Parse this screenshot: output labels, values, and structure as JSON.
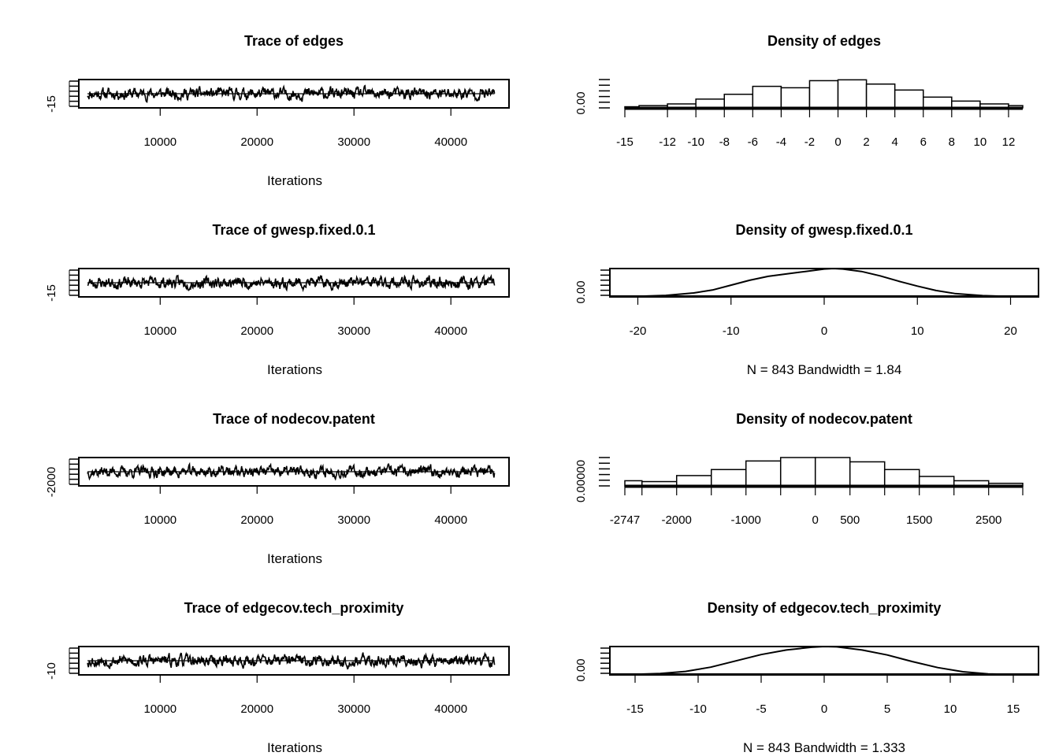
{
  "chart_data": [
    {
      "type": "line",
      "title": "Trace of edges",
      "xlabel": "Iterations",
      "ylabel": "",
      "xticks": [
        10000,
        20000,
        30000,
        40000
      ],
      "yticks": [
        -15
      ],
      "ytick_labels": [
        "-15"
      ],
      "xlim": [
        1600,
        46000
      ],
      "ylim": [
        -18,
        18
      ],
      "series": [
        {
          "seed": 11,
          "x_start": 2500,
          "x_end": 44500,
          "n": 843,
          "mean": 0,
          "sd": 6
        }
      ]
    },
    {
      "type": "bar",
      "title": "Density of edges",
      "xlabel": "",
      "ylabel": "",
      "xticks": [
        -15,
        -12,
        -10,
        -8,
        -6,
        -4,
        -2,
        0,
        2,
        4,
        6,
        8,
        10,
        12
      ],
      "xtick_labels": [
        "-15",
        "-12",
        "-10",
        "-8",
        "-6",
        "-4",
        "-2",
        "0",
        "2",
        "4",
        "6",
        "8",
        "10",
        "12"
      ],
      "ytick_labels": [
        "0.00"
      ],
      "bins": [
        [
          -15,
          -14
        ],
        [
          -14,
          -12
        ],
        [
          -12,
          -10
        ],
        [
          -10,
          -8
        ],
        [
          -8,
          -6
        ],
        [
          -6,
          -4
        ],
        [
          -4,
          -2
        ],
        [
          -2,
          0
        ],
        [
          0,
          2
        ],
        [
          2,
          4
        ],
        [
          4,
          6
        ],
        [
          6,
          8
        ],
        [
          8,
          10
        ],
        [
          10,
          12
        ],
        [
          12,
          13
        ]
      ],
      "values": [
        0.004,
        0.008,
        0.014,
        0.031,
        0.048,
        0.076,
        0.071,
        0.096,
        0.099,
        0.084,
        0.063,
        0.038,
        0.024,
        0.014,
        0.008
      ],
      "xlim": [
        -15,
        13
      ],
      "ylim": [
        0,
        0.1
      ]
    },
    {
      "type": "line",
      "title": "Trace of gwesp.fixed.0.1",
      "xlabel": "Iterations",
      "ylabel": "",
      "xticks": [
        10000,
        20000,
        30000,
        40000
      ],
      "yticks": [
        -15
      ],
      "ytick_labels": [
        "-15"
      ],
      "xlim": [
        1600,
        46000
      ],
      "ylim": [
        -18,
        18
      ],
      "series": [
        {
          "seed": 23,
          "x_start": 2500,
          "x_end": 44500,
          "n": 843,
          "mean": 0,
          "sd": 6
        }
      ]
    },
    {
      "type": "area",
      "title": "Density of gwesp.fixed.0.1",
      "xlabel": "N = 843   Bandwidth = 1.84",
      "ylabel": "",
      "xticks": [
        -20,
        -10,
        0,
        10,
        20
      ],
      "ytick_labels": [
        "0.00"
      ],
      "x": [
        -23,
        -20,
        -17,
        -14,
        -12,
        -10,
        -8,
        -6,
        -4,
        -2,
        0,
        1,
        2,
        4,
        6,
        8,
        10,
        12,
        14,
        17,
        20,
        23
      ],
      "y": [
        0.0005,
        0.0012,
        0.003,
        0.008,
        0.014,
        0.024,
        0.034,
        0.042,
        0.047,
        0.052,
        0.057,
        0.058,
        0.057,
        0.052,
        0.043,
        0.032,
        0.022,
        0.013,
        0.007,
        0.0025,
        0.0008,
        0.0002
      ],
      "xlim": [
        -23,
        23
      ],
      "ylim": [
        0,
        0.058
      ]
    },
    {
      "type": "line",
      "title": "Trace of nodecov.patent",
      "xlabel": "Iterations",
      "ylabel": "",
      "xticks": [
        10000,
        20000,
        30000,
        40000
      ],
      "yticks": [
        -2000
      ],
      "ytick_labels": [
        "-2000"
      ],
      "xlim": [
        1600,
        46000
      ],
      "ylim": [
        -2800,
        2800
      ],
      "series": [
        {
          "seed": 37,
          "x_start": 2500,
          "x_end": 44500,
          "n": 843,
          "mean": 0,
          "sd": 900
        }
      ]
    },
    {
      "type": "bar",
      "title": "Density of nodecov.patent",
      "xlabel": "",
      "ylabel": "",
      "xticks": [
        -2747,
        -2500,
        -2000,
        -1500,
        -1000,
        -500,
        0,
        500,
        1000,
        1500,
        2000,
        2500,
        2992
      ],
      "xtick_labels": [
        "-2747",
        "",
        "-2000",
        "",
        "-1000",
        "",
        "0",
        "500",
        "",
        "1500",
        "",
        "2500",
        ""
      ],
      "ytick_labels": [
        "0.00000"
      ],
      "bins": [
        [
          -2747,
          -2500
        ],
        [
          -2500,
          -2000
        ],
        [
          -2000,
          -1500
        ],
        [
          -1500,
          -1000
        ],
        [
          -1000,
          -500
        ],
        [
          -500,
          0
        ],
        [
          0,
          500
        ],
        [
          500,
          1000
        ],
        [
          1000,
          1500
        ],
        [
          1500,
          2000
        ],
        [
          2000,
          2500
        ],
        [
          2500,
          2992
        ]
      ],
      "values": [
        6e-05,
        5e-05,
        0.00012,
        0.00019,
        0.00029,
        0.00033,
        0.00033,
        0.00028,
        0.00019,
        0.00011,
        6e-05,
        3e-05
      ],
      "xlim": [
        -2747,
        2992
      ],
      "ylim": [
        0,
        0.00033
      ]
    },
    {
      "type": "line",
      "title": "Trace of edgecov.tech_proximity",
      "xlabel": "Iterations",
      "ylabel": "",
      "xticks": [
        10000,
        20000,
        30000,
        40000
      ],
      "yticks": [
        -10
      ],
      "ytick_labels": [
        "-10"
      ],
      "xlim": [
        1600,
        46000
      ],
      "ylim": [
        -13,
        13
      ],
      "series": [
        {
          "seed": 53,
          "x_start": 2500,
          "x_end": 44500,
          "n": 843,
          "mean": 0,
          "sd": 4.5
        }
      ]
    },
    {
      "type": "area",
      "title": "Density of edgecov.tech_proximity",
      "xlabel": "N = 843   Bandwidth = 1.333",
      "ylabel": "",
      "xticks": [
        -15,
        -10,
        -5,
        0,
        5,
        10,
        15
      ],
      "ytick_labels": [
        "0.00"
      ],
      "x": [
        -17,
        -15,
        -13,
        -11,
        -9,
        -7,
        -5,
        -3,
        -1,
        0,
        1,
        3,
        5,
        7,
        9,
        11,
        13,
        15,
        17
      ],
      "y": [
        0.0005,
        0.0015,
        0.004,
        0.01,
        0.022,
        0.04,
        0.058,
        0.071,
        0.079,
        0.081,
        0.08,
        0.071,
        0.057,
        0.038,
        0.021,
        0.009,
        0.003,
        0.0008,
        0.0002
      ],
      "xlim": [
        -17,
        17
      ],
      "ylim": [
        0,
        0.081
      ]
    }
  ]
}
